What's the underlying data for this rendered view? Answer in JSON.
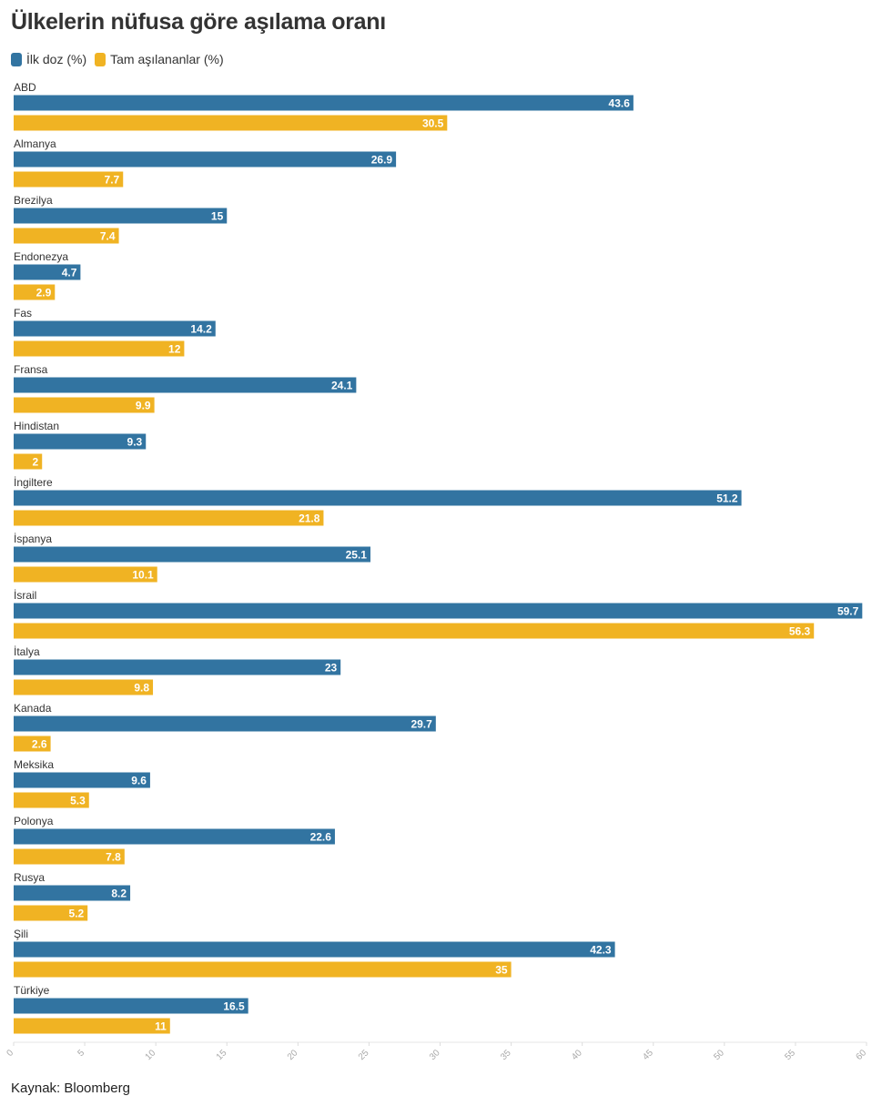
{
  "chart_data": {
    "type": "bar",
    "orientation": "horizontal",
    "title": "Ülkelerin nüfusa göre aşılama oranı",
    "categories": [
      "ABD",
      "Almanya",
      "Brezilya",
      "Endonezya",
      "Fas",
      "Fransa",
      "Hindistan",
      "İngiltere",
      "İspanya",
      "İsrail",
      "İtalya",
      "Kanada",
      "Meksika",
      "Polonya",
      "Rusya",
      "Şili",
      "Türkiye"
    ],
    "series": [
      {
        "name": "İlk doz (%)",
        "color": "#3274a1",
        "values": [
          43.6,
          26.9,
          15,
          4.7,
          14.2,
          24.1,
          9.3,
          51.2,
          25.1,
          59.7,
          23,
          29.7,
          9.6,
          22.6,
          8.2,
          42.3,
          16.5
        ],
        "labels": [
          "43.6",
          "26.9",
          "15",
          "4.7",
          "14.2",
          "24.1",
          "9.3",
          "51.2",
          "25.1",
          "59.7",
          "23",
          "29.7",
          "9.6",
          "22.6",
          "8.2",
          "42.3",
          "16.5"
        ]
      },
      {
        "name": "Tam aşılananlar (%)",
        "color": "#f0b323",
        "values": [
          30.5,
          7.7,
          7.4,
          2.9,
          12,
          9.9,
          2,
          21.8,
          10.1,
          56.3,
          9.8,
          2.6,
          5.3,
          7.8,
          5.2,
          35,
          11
        ],
        "labels": [
          "30.5",
          "7.7",
          "7.4",
          "2.9",
          "12",
          "9.9",
          "2",
          "21.8",
          "10.1",
          "56.3",
          "9.8",
          "2.6",
          "5.3",
          "7.8",
          "5.2",
          "35",
          "11"
        ]
      }
    ],
    "xlim": [
      0,
      60
    ],
    "xticks": [
      0,
      5,
      10,
      15,
      20,
      25,
      30,
      35,
      40,
      45,
      50,
      55,
      60
    ],
    "xtick_labels": [
      "0",
      "5",
      "10",
      "15",
      "20",
      "25",
      "30",
      "35",
      "40",
      "45",
      "50",
      "55",
      "60"
    ],
    "grid": false,
    "legend_position": "top-left"
  },
  "source": "Kaynak: Bloomberg"
}
